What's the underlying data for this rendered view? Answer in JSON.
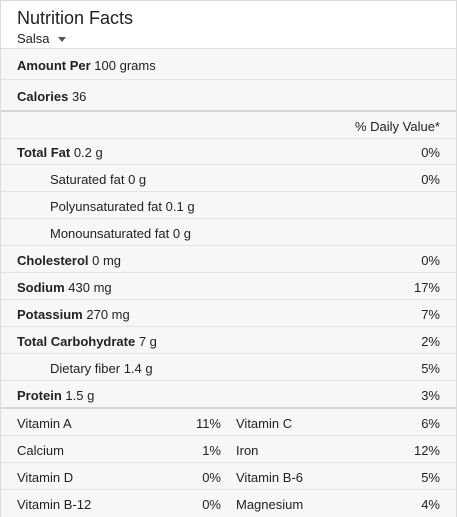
{
  "header": {
    "title": "Nutrition Facts",
    "subtitle": "Salsa"
  },
  "amount_per": {
    "label": "Amount Per",
    "value": "100 grams"
  },
  "calories": {
    "label": "Calories",
    "value": "36"
  },
  "daily_value_header": "% Daily Value*",
  "nutrients": [
    {
      "label": "Total Fat",
      "value": "0.2 g",
      "pct": "0%"
    },
    {
      "label": "Saturated fat",
      "value": "0 g",
      "pct": "0%"
    },
    {
      "label": "Polyunsaturated fat",
      "value": "0.1 g",
      "pct": ""
    },
    {
      "label": "Monounsaturated fat",
      "value": "0 g",
      "pct": ""
    },
    {
      "label": "Cholesterol",
      "value": "0 mg",
      "pct": "0%"
    },
    {
      "label": "Sodium",
      "value": "430 mg",
      "pct": "17%"
    },
    {
      "label": "Potassium",
      "value": "270 mg",
      "pct": "7%"
    },
    {
      "label": "Total Carbohydrate",
      "value": "7 g",
      "pct": "2%"
    },
    {
      "label": "Dietary fiber",
      "value": "1.4 g",
      "pct": "5%"
    },
    {
      "label": "Protein",
      "value": "1.5 g",
      "pct": "3%"
    }
  ],
  "vitamins": [
    {
      "left_label": "Vitamin A",
      "left_pct": "11%",
      "right_label": "Vitamin C",
      "right_pct": "6%"
    },
    {
      "left_label": "Calcium",
      "left_pct": "1%",
      "right_label": "Iron",
      "right_pct": "12%"
    },
    {
      "left_label": "Vitamin D",
      "left_pct": "0%",
      "right_label": "Vitamin B-6",
      "right_pct": "5%"
    },
    {
      "left_label": "Vitamin B-12",
      "left_pct": "0%",
      "right_label": "Magnesium",
      "right_pct": "4%"
    }
  ]
}
